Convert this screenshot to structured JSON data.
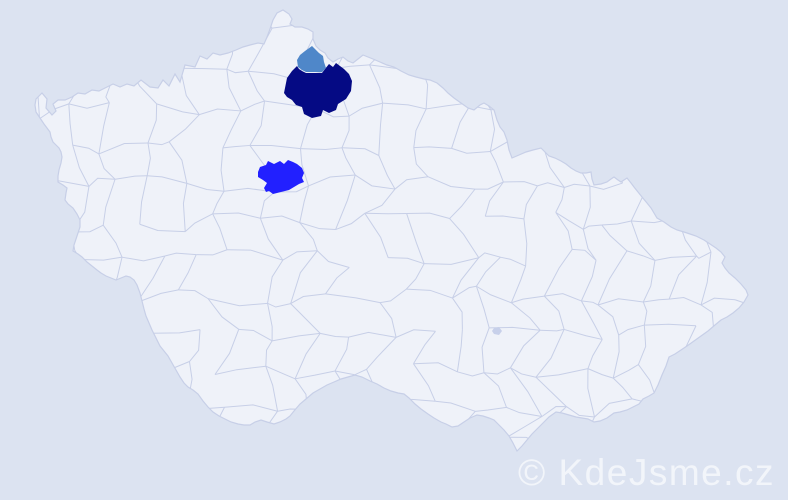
{
  "watermark": {
    "text": "© KdeJsme.cz"
  },
  "colors": {
    "background": "#dce3f1",
    "land": "#eff2f9",
    "district_border": "#c7cfe7",
    "highlight_dark_navy": "#050a84",
    "highlight_steel_blue": "#4f87c9",
    "highlight_bright_blue": "#2220ff",
    "highlight_faint_lavender": "#c7d0ea",
    "watermark_text": "#f2f5fa"
  },
  "map": {
    "description": "District choropleth map with highlighted districts",
    "highlights": [
      {
        "shade": "dark navy",
        "color": "#050a84"
      },
      {
        "shade": "steel blue",
        "color": "#4f87c9"
      },
      {
        "shade": "bright blue",
        "color": "#2220ff"
      },
      {
        "shade": "faint lavender",
        "color": "#c7d0ea"
      }
    ]
  }
}
